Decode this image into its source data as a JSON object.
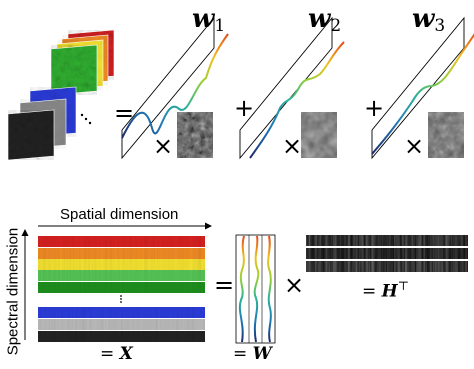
{
  "top": {
    "components": [
      {
        "weight": "w",
        "index": "1"
      },
      {
        "weight": "w",
        "index": "2"
      },
      {
        "weight": "w",
        "index": "3"
      }
    ],
    "equals": "=",
    "plus": "+",
    "times": "×",
    "ellipsis": "..."
  },
  "bottom": {
    "spatial_label": "Spatial dimension",
    "spectral_label": "Spectral dimension",
    "x_caption": {
      "eq": "= ",
      "sym": "X"
    },
    "w_caption": {
      "eq": "= ",
      "sym": "W"
    },
    "h_caption": {
      "eq": "= ",
      "sym": "H",
      "sup": "⊤"
    },
    "equals": "=",
    "times": "×",
    "ellipsis": "⋮"
  },
  "colors": {
    "cube": [
      "#d62020",
      "#f08a24",
      "#f3e130",
      "#30b030",
      "#1d8f1d",
      "#2a3bd8",
      "#888888",
      "#222222"
    ],
    "curve_gradient": [
      "#1f2a6b",
      "#1f7ab8",
      "#2bb09a",
      "#9ad034",
      "#f0c020",
      "#e34a1c"
    ]
  }
}
